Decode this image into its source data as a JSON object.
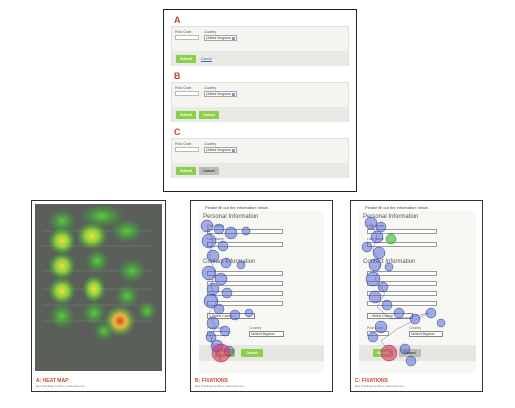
{
  "variants": [
    {
      "letter": "A",
      "postcode_label": "Post Code",
      "country_label": "Country",
      "country_value": "United Kingdom",
      "submit_label": "Submit",
      "second_label": "Cancel",
      "second_style": "link",
      "buttons_color": "#8ccf4a"
    },
    {
      "letter": "B",
      "postcode_label": "Post Code",
      "country_label": "Country",
      "country_value": "United Kingdom",
      "submit_label": "Submit",
      "second_label": "Cancel",
      "second_style": "green",
      "buttons_color": "#8ccf4a"
    },
    {
      "letter": "C",
      "postcode_label": "Post Code",
      "country_label": "Country",
      "country_value": "United Kingdom",
      "submit_label": "Submit",
      "second_label": "Cancel",
      "second_style": "grey",
      "buttons_color": "#8ccf4a"
    }
  ],
  "form": {
    "intro": "Please fill out the information below.",
    "personal_heading": "Personal Information",
    "first_name": "First Name",
    "last_name": "Last Name",
    "contact_heading": "Contact Information",
    "county_value": "-- Select County --",
    "postcode_label": "Post Code",
    "country_label": "Country",
    "country_value": "United Kingdom",
    "submit_label": "Submit",
    "cancel_label": "Cancel"
  },
  "panels": {
    "heatmap": {
      "title": "A: HEAT MAP",
      "subtitle": "Eye Tracking by Etre  |  www.etre.com"
    },
    "fixations_b": {
      "title": "B: FIXATIONS",
      "subtitle": "Eye Tracking by Etre  |  www.etre.com"
    },
    "fixations_c": {
      "title": "C: FIXATIONS",
      "subtitle": "Eye Tracking by Etre  |  www.etre.com"
    }
  },
  "colors": {
    "accent": "#c8472b",
    "button_green": "#8ccf4a",
    "fixation_blue": "#4a5fd6",
    "fixation_red": "#e0306a",
    "heat_green": "#3fc23a",
    "heat_yellow": "#f0e53a"
  }
}
